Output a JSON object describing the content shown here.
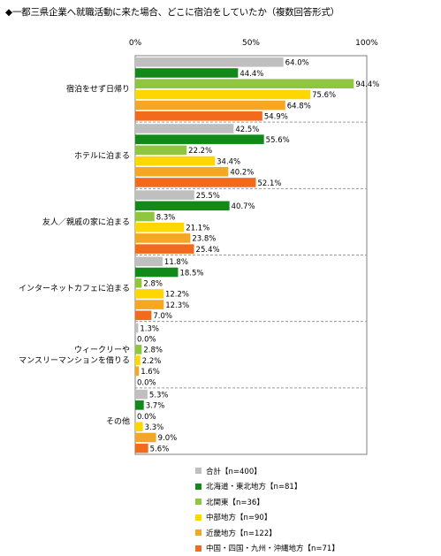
{
  "chart_data": {
    "type": "bar",
    "orientation": "horizontal",
    "title": "◆一都三県企業へ就職活動に来た場合、どこに宿泊をしていたか（複数回答形式）",
    "x_ticks": [
      "0%",
      "50%",
      "100%"
    ],
    "xlim": [
      0,
      100
    ],
    "categories": [
      "宿泊をせず日帰り",
      "ホテルに泊まる",
      "友人／親戚の家に泊まる",
      "インターネットカフェに泊まる",
      "ウィークリーや\nマンスリーマンションを借りる",
      "その他"
    ],
    "series": [
      {
        "name": "合計【n=400】",
        "color": "#bfbfbf",
        "values": [
          64.0,
          42.5,
          25.5,
          11.8,
          1.3,
          5.3
        ]
      },
      {
        "name": "北海道・東北地方【n=81】",
        "color": "#118a1a",
        "values": [
          44.4,
          55.6,
          40.7,
          18.5,
          0.0,
          3.7
        ]
      },
      {
        "name": "北関東【n=36】",
        "color": "#8ec63f",
        "values": [
          94.4,
          22.2,
          8.3,
          2.8,
          2.8,
          0.0
        ]
      },
      {
        "name": "中部地方【n=90】",
        "color": "#ffd700",
        "values": [
          75.6,
          34.4,
          21.1,
          12.2,
          2.2,
          3.3
        ]
      },
      {
        "name": "近畿地方【n=122】",
        "color": "#f5a623",
        "values": [
          64.8,
          40.2,
          23.8,
          12.3,
          1.6,
          9.0
        ]
      },
      {
        "name": "中国・四国・九州・沖縄地方【n=71】",
        "color": "#f26b1d",
        "values": [
          54.9,
          52.1,
          25.4,
          7.0,
          0.0,
          5.6
        ]
      }
    ],
    "value_format": "{v}%",
    "legend_position": "bottom",
    "grid": false
  }
}
